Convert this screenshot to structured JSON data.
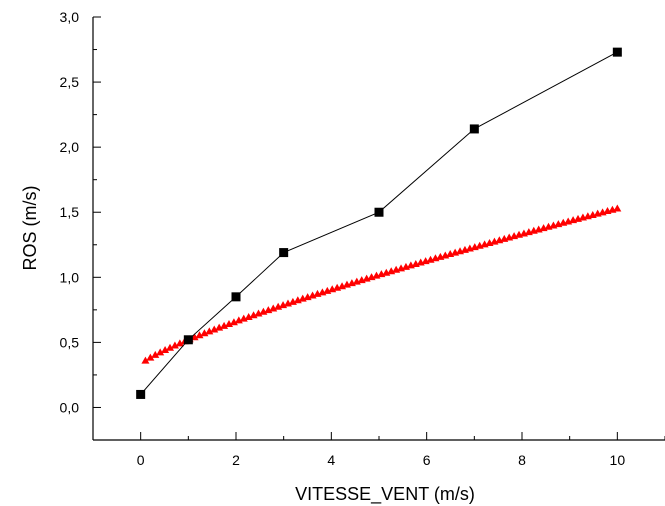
{
  "chart_data": {
    "type": "scatter",
    "title": "",
    "xlabel": "VITESSE_VENT (m/s)",
    "ylabel": "ROS (m/s)",
    "xlim": [
      -1,
      11
    ],
    "ylim": [
      -0.25,
      3.0
    ],
    "x_ticks": [
      0,
      2,
      4,
      6,
      8,
      10
    ],
    "x_tick_labels": [
      "0",
      "2",
      "4",
      "6",
      "8",
      "10"
    ],
    "y_ticks": [
      0.0,
      0.5,
      1.0,
      1.5,
      2.0,
      2.5,
      3.0
    ],
    "y_tick_labels": [
      "0,0",
      "0,5",
      "1,0",
      "1,5",
      "2,0",
      "2,5",
      "3,0"
    ],
    "grid": false,
    "series": [
      {
        "kind": "line-with-markers",
        "marker": "square",
        "color": "#000000",
        "x": [
          0,
          1,
          2,
          3,
          5,
          7,
          10
        ],
        "y": [
          0.1,
          0.52,
          0.85,
          1.19,
          1.5,
          2.14,
          2.73
        ]
      },
      {
        "kind": "fit-markers",
        "marker": "triangle",
        "color": "#ff0000",
        "x_start": 0.1,
        "x_end": 10,
        "count": 97,
        "model": "power",
        "params": {
          "a": 0.19,
          "b": 0.33,
          "c": 0.8
        }
      }
    ]
  }
}
